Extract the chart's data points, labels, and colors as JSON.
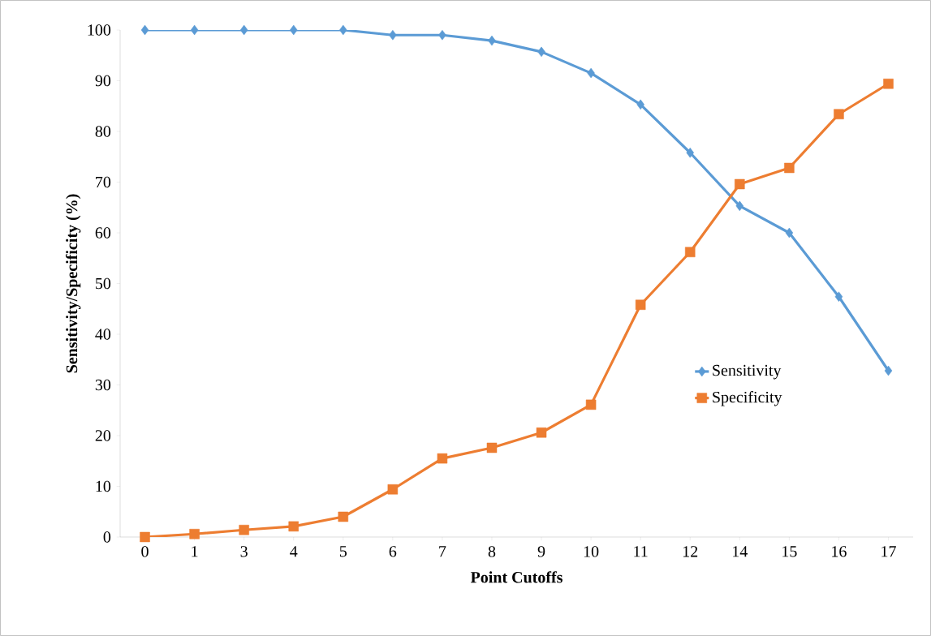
{
  "chart_data": {
    "type": "line",
    "xlabel": "Point Cutoffs",
    "ylabel": "Sensitivity/Specificity (%)",
    "categories": [
      "0",
      "1",
      "3",
      "4",
      "5",
      "6",
      "7",
      "8",
      "9",
      "10",
      "11",
      "12",
      "14",
      "15",
      "16",
      "17"
    ],
    "series": [
      {
        "name": "Sensitivity",
        "color": "#5b9bd5",
        "marker": "diamond",
        "values": [
          100,
          100,
          100,
          100,
          100,
          99,
          99,
          97.9,
          95.7,
          91.5,
          85.3,
          75.8,
          65.3,
          60,
          47.4,
          32.8
        ]
      },
      {
        "name": "Specificity",
        "color": "#ed7d31",
        "marker": "square",
        "values": [
          0,
          0.6,
          1.4,
          2.1,
          4,
          9.4,
          15.5,
          17.6,
          20.6,
          26.1,
          45.8,
          56.2,
          69.6,
          72.8,
          83.4,
          89.4
        ]
      }
    ],
    "ylim": [
      0,
      100
    ],
    "yticks": [
      0,
      10,
      20,
      30,
      40,
      50,
      60,
      70,
      80,
      90,
      100
    ],
    "grid": false,
    "legend": "right",
    "line_style": "solid"
  }
}
